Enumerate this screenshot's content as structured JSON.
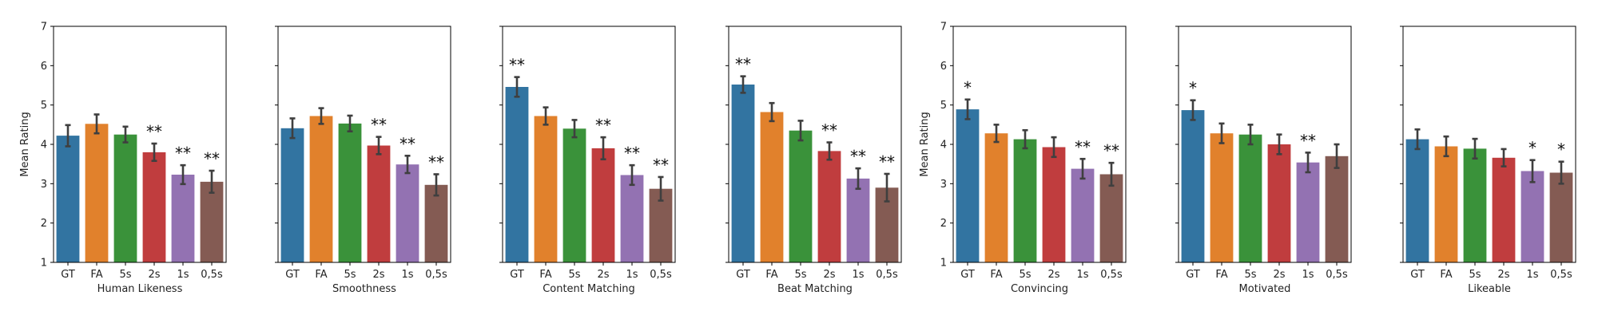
{
  "chart_data": {
    "type": "bar",
    "categories": [
      "GT",
      "FA",
      "5s",
      "2s",
      "1s",
      "0,5s"
    ],
    "series_colors": [
      "#3274a1",
      "#e1812c",
      "#3a923a",
      "#c03d3e",
      "#9372b2",
      "#845b53"
    ],
    "yticks": [
      "1",
      "2",
      "3",
      "4",
      "5",
      "6",
      "7"
    ],
    "ylim": [
      1,
      7
    ],
    "grid": false,
    "panels": [
      {
        "xlabel": "Human Likeness",
        "ylabel": "Mean Rating",
        "values": [
          4.22,
          4.52,
          4.25,
          3.8,
          3.23,
          3.05
        ],
        "err": [
          0.27,
          0.24,
          0.2,
          0.22,
          0.24,
          0.28
        ],
        "sig": [
          "",
          "",
          "",
          "**",
          "**",
          "**"
        ]
      },
      {
        "xlabel": "Smoothness",
        "ylabel": "",
        "values": [
          4.41,
          4.72,
          4.53,
          3.97,
          3.49,
          2.97
        ],
        "err": [
          0.25,
          0.2,
          0.2,
          0.22,
          0.22,
          0.27
        ],
        "sig": [
          "",
          "",
          "",
          "**",
          "**",
          "**"
        ]
      },
      {
        "xlabel": "Content Matching",
        "ylabel": "",
        "values": [
          5.46,
          4.72,
          4.4,
          3.9,
          3.22,
          2.87
        ],
        "err": [
          0.25,
          0.22,
          0.22,
          0.28,
          0.25,
          0.3
        ],
        "sig": [
          "**",
          "",
          "",
          "**",
          "**",
          "**"
        ]
      },
      {
        "xlabel": "Beat Matching",
        "ylabel": "",
        "values": [
          5.52,
          4.82,
          4.35,
          3.83,
          3.13,
          2.9
        ],
        "err": [
          0.21,
          0.23,
          0.25,
          0.22,
          0.26,
          0.35
        ],
        "sig": [
          "**",
          "",
          "",
          "**",
          "**",
          "**"
        ]
      },
      {
        "xlabel": "Convincing",
        "ylabel": "Mean Rating",
        "values": [
          4.89,
          4.28,
          4.13,
          3.93,
          3.38,
          3.24
        ],
        "err": [
          0.25,
          0.22,
          0.23,
          0.25,
          0.25,
          0.29
        ],
        "sig": [
          "*",
          "",
          "",
          "",
          "**",
          "**"
        ]
      },
      {
        "xlabel": "Motivated",
        "ylabel": "",
        "values": [
          4.87,
          4.28,
          4.25,
          4.0,
          3.54,
          3.7
        ],
        "err": [
          0.25,
          0.25,
          0.25,
          0.25,
          0.25,
          0.3
        ],
        "sig": [
          "*",
          "",
          "",
          "",
          "**",
          ""
        ]
      },
      {
        "xlabel": "Likeable",
        "ylabel": "",
        "values": [
          4.13,
          3.95,
          3.89,
          3.66,
          3.32,
          3.28
        ],
        "err": [
          0.25,
          0.25,
          0.25,
          0.22,
          0.28,
          0.28
        ],
        "sig": [
          "",
          "",
          "",
          "",
          "*",
          "*"
        ]
      }
    ]
  }
}
